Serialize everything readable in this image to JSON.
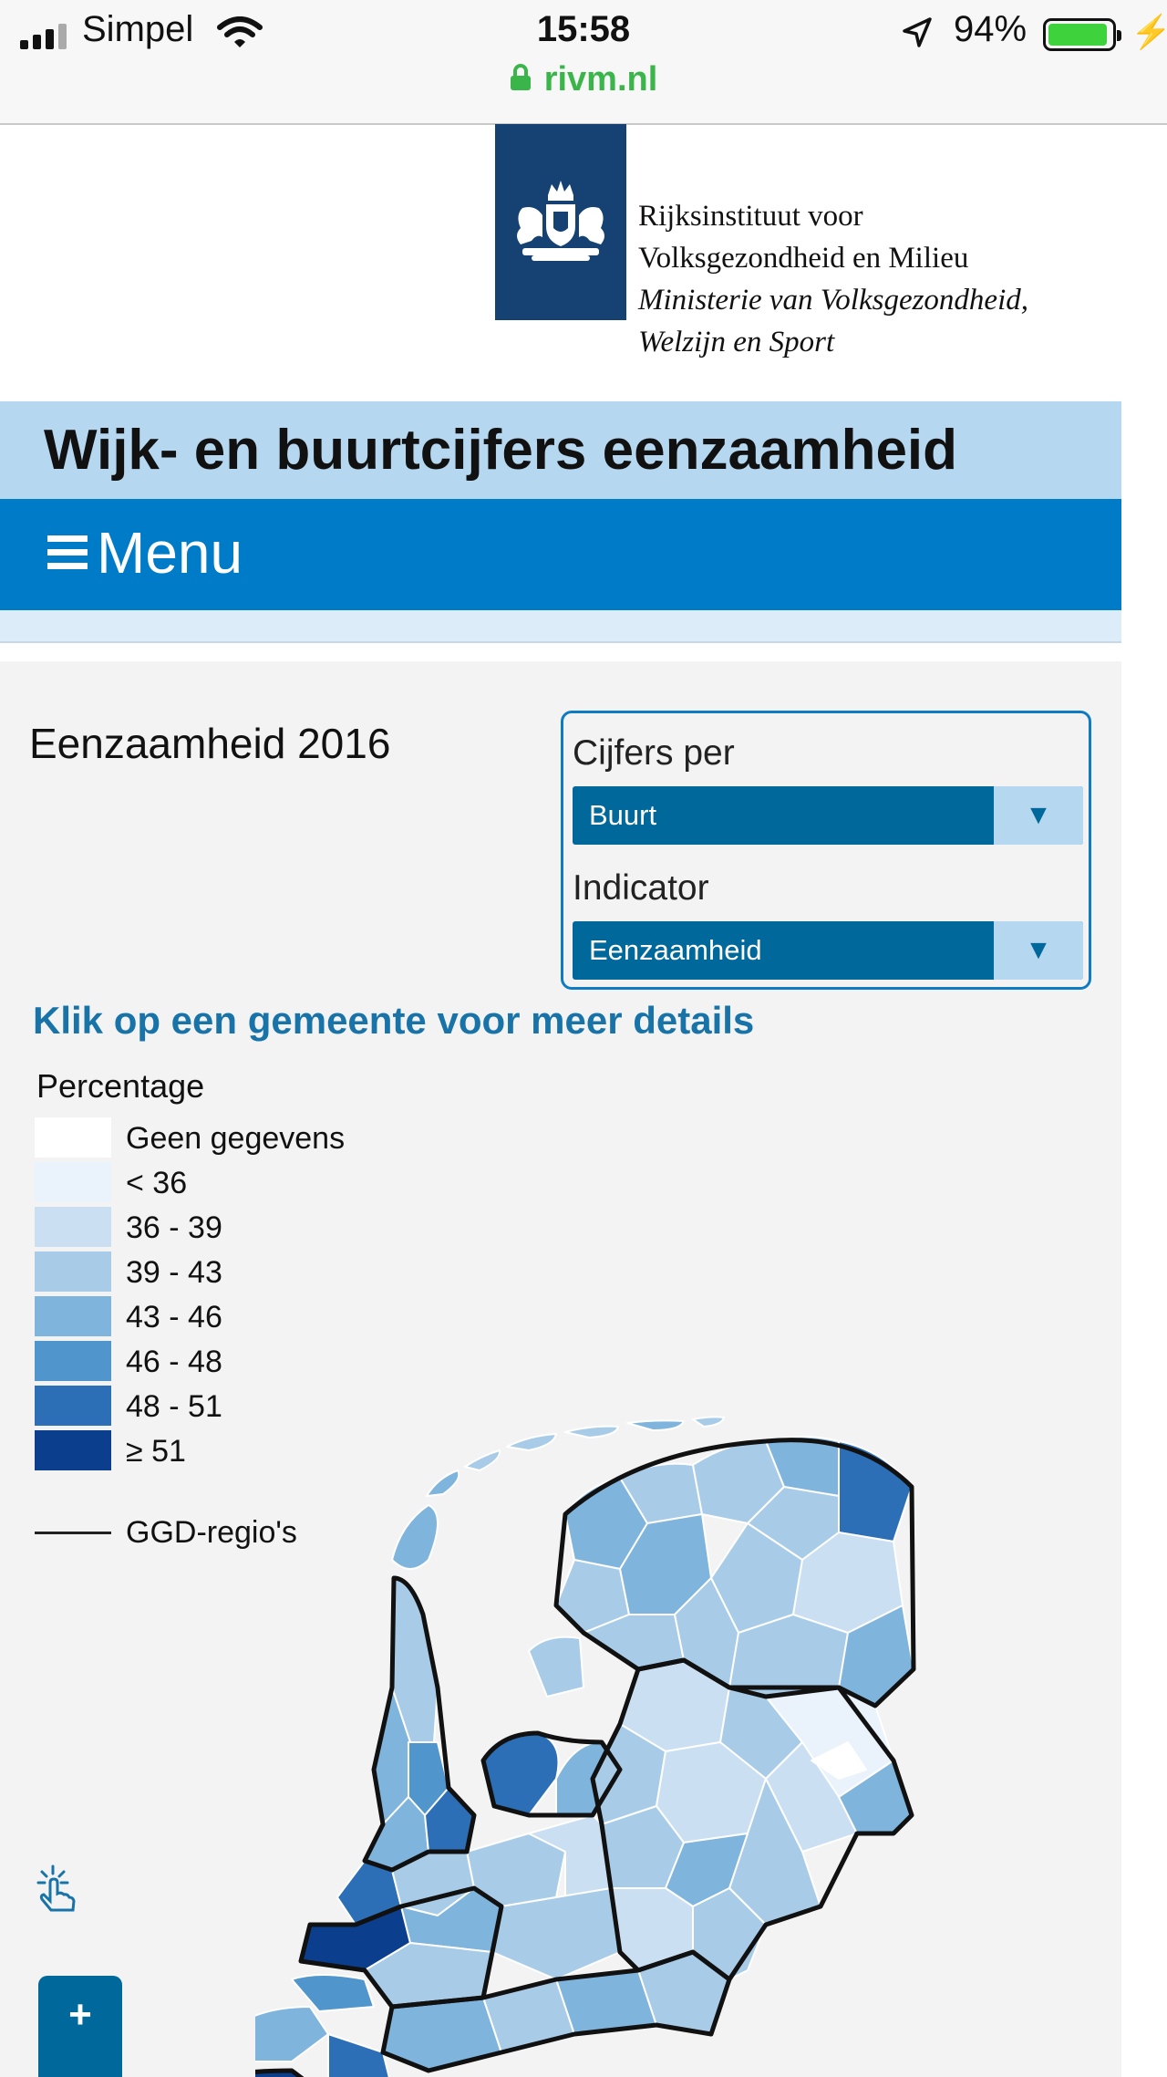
{
  "status_bar": {
    "carrier": "Simpel",
    "time": "15:58",
    "battery": "94%",
    "battery_level": 0.94
  },
  "browser": {
    "domain": "rivm.nl"
  },
  "org": {
    "line1": "Rijksinstituut voor",
    "line2": "Volksgezondheid en Milieu",
    "line3": "Ministerie van Volksgezondheid,",
    "line4": "Welzijn en Sport"
  },
  "page": {
    "title": "Wijk- en buurtcijfers eenzaamheid",
    "menu_label": "Menu"
  },
  "panel": {
    "heading": "Eenzaamheid 2016",
    "per_label": "Cijfers per",
    "per_value": "Buurt",
    "indicator_label": "Indicator",
    "indicator_value": "Eenzaamheid",
    "arrow": "▼"
  },
  "map": {
    "hint": "Klik op een gemeente voor meer details",
    "legend_title": "Percentage",
    "legend": [
      {
        "label": "Geen gegevens",
        "color": "#ffffff"
      },
      {
        "label": "< 36",
        "color": "#eaf2fb"
      },
      {
        "label": "36 - 39",
        "color": "#cbdff2"
      },
      {
        "label": "39 - 43",
        "color": "#a8cce8"
      },
      {
        "label": "43 - 46",
        "color": "#7fb4dd"
      },
      {
        "label": "46 - 48",
        "color": "#5095cc"
      },
      {
        "label": "48 - 51",
        "color": "#2c6fb6"
      },
      {
        "label": "≥ 51",
        "color": "#0b3f8e"
      }
    ],
    "boundary_label": "GGD-regio's",
    "zoom_in": "+"
  }
}
